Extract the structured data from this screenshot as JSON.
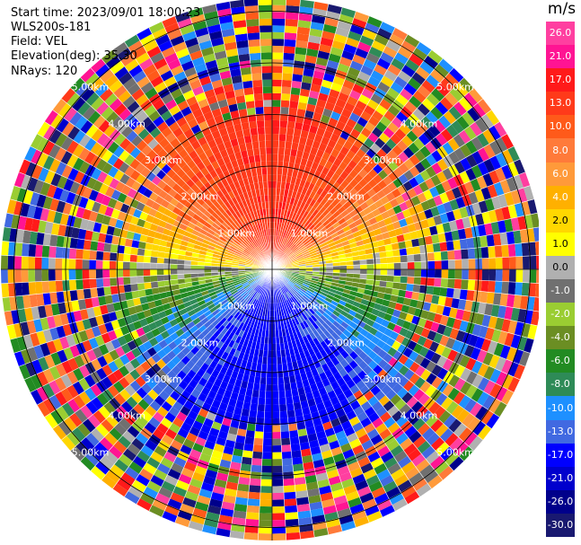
{
  "header": {
    "start_time": "Start time: 2023/09/01 18:00:23",
    "instrument": "WLS200s-181",
    "field": "Field: VEL",
    "elevation": "Elevation(deg): 35.30",
    "nrays": "NRays: 120"
  },
  "colorbar": {
    "unit": "m/s",
    "labels": [
      "26.0",
      "21.0",
      "17.0",
      "13.0",
      "10.0",
      "8.0",
      "6.0",
      "4.0",
      "2.0",
      "1.0",
      "0.0",
      "-1.0",
      "-2.0",
      "-4.0",
      "-6.0",
      "-8.0",
      "-10.0",
      "-13.0",
      "-17.0",
      "-21.0",
      "-26.0",
      "-30.0"
    ],
    "colors": [
      "#ff3fa0",
      "#ff1493",
      "#ff1a1a",
      "#ff3a1a",
      "#ff5a1a",
      "#ff7a3a",
      "#ff9a3a",
      "#ffb000",
      "#ffd700",
      "#ffff00",
      "#b0b0b0",
      "#707070",
      "#9acd32",
      "#6b8e23",
      "#228b22",
      "#2e8b57",
      "#1e90ff",
      "#4169e1",
      "#0000ff",
      "#0000cd",
      "#00008b",
      "#191970"
    ]
  },
  "ring_labels": {
    "r1": "1.00km",
    "r2": "2.00km",
    "r3": "3.00km",
    "r4": "4.00km",
    "r5": "5.00km"
  }
}
